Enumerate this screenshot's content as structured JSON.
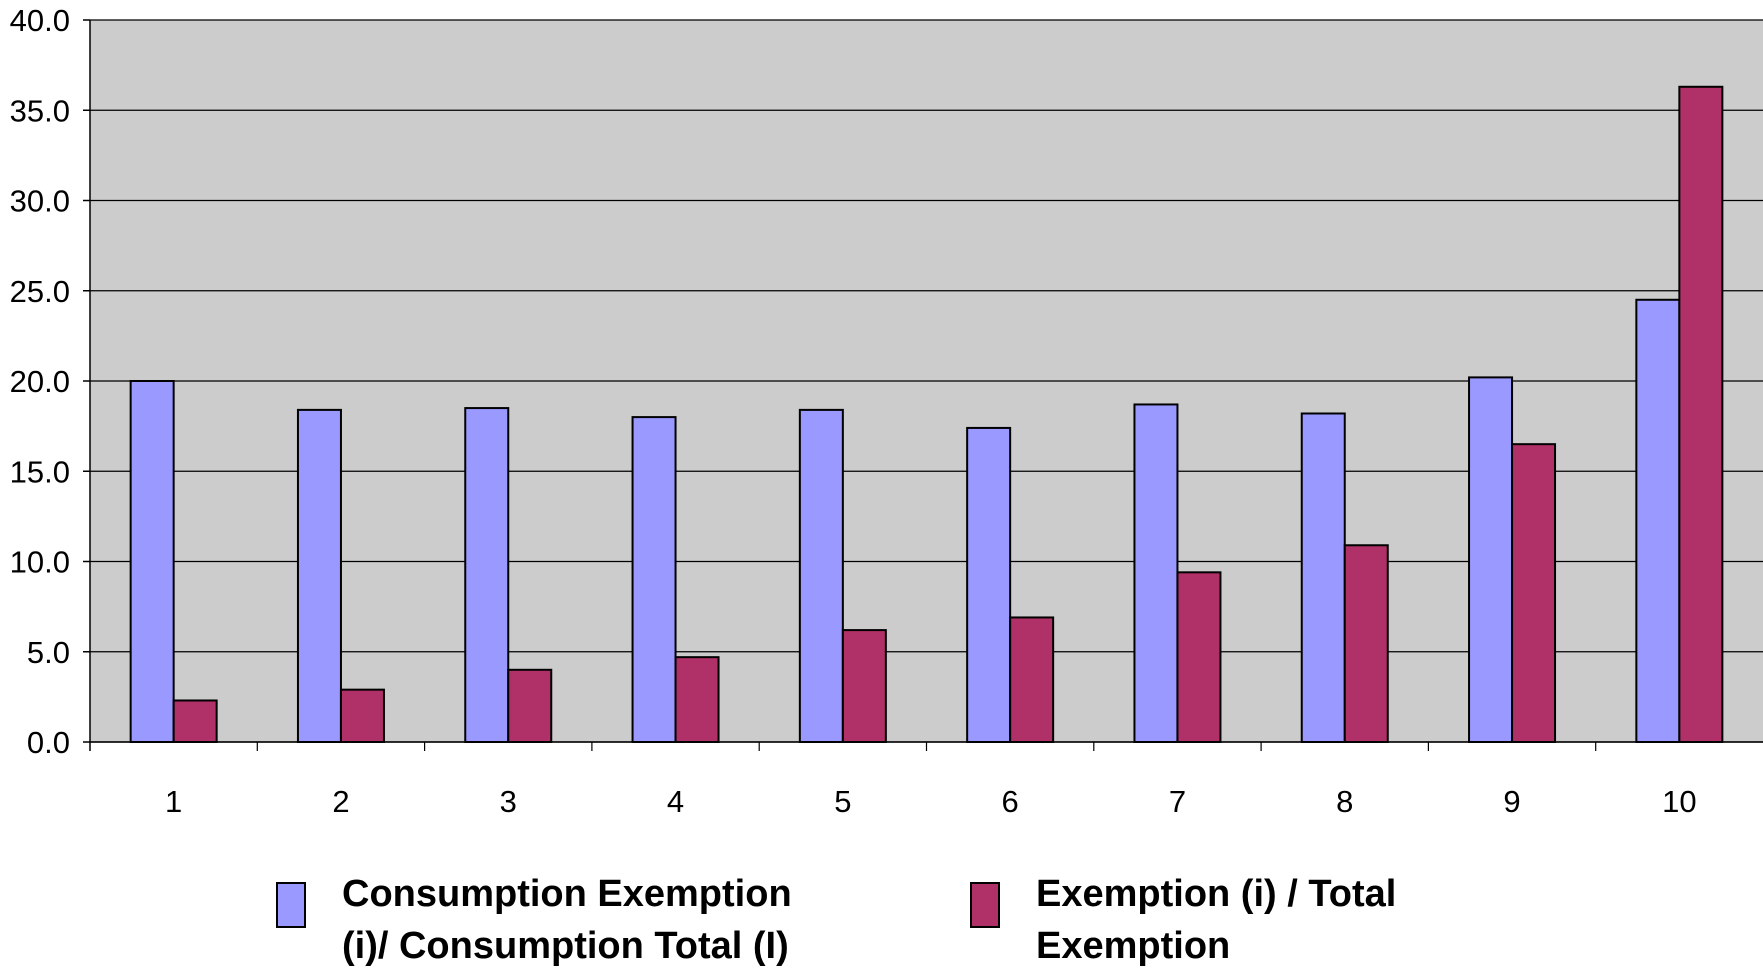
{
  "chart_data": {
    "type": "bar",
    "categories": [
      "1",
      "2",
      "3",
      "4",
      "5",
      "6",
      "7",
      "8",
      "9",
      "10"
    ],
    "series": [
      {
        "name": "Consumption Exemption (i)/ Consumption Total (I)",
        "color": "#9999ff",
        "values": [
          20.0,
          18.4,
          18.5,
          18.0,
          18.4,
          17.4,
          18.7,
          18.2,
          20.2,
          24.5
        ]
      },
      {
        "name": "Exemption (i) / Total Exemption",
        "color": "#b03068",
        "values": [
          2.3,
          2.9,
          4.0,
          4.7,
          6.2,
          6.9,
          9.4,
          10.9,
          16.5,
          36.3
        ]
      }
    ],
    "y_ticks": [
      "0.0",
      "5.0",
      "10.0",
      "15.0",
      "20.0",
      "25.0",
      "30.0",
      "35.0",
      "40.0"
    ],
    "ylim": [
      0,
      40
    ],
    "grid": true,
    "plot_background": "#cccccc",
    "legend_position": "bottom"
  }
}
